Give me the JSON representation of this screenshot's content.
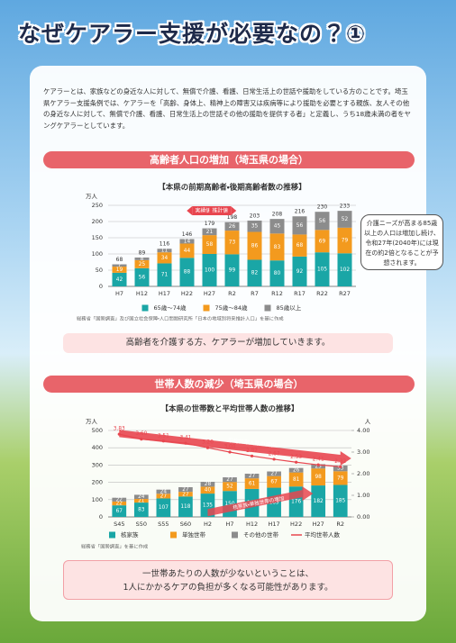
{
  "page_title": "なぜケアラー支援が必要なの？①",
  "intro": "ケアラーとは、家族などの身近な人に対して、無償で介護、看護、日常生活上の世話や援助をしている方のことです。埼玉県ケアラー支援条例では、ケアラーを「高齢、身体上、精神上の障害又は疾病等により援助を必要とする親族、友人その他の身近な人に対して、無償で介護、看護、日常生活上の世話その他の援助を提供する者」と定義し、うち18歳未満の者をヤングケアラーとしています。",
  "sections": [
    {
      "header": "高齢者人口の増加（埼玉県の場合）",
      "callout": "介護ニーズが高まる85歳以上の人口は増加し続け、令和27年(2040年)には現在の約2倍となることが予想されます。",
      "message": [
        "高齢者を介護する方、ケアラーが増加していきます。"
      ]
    },
    {
      "header": "世帯人数の減少（埼玉県の場合）",
      "message": [
        "一世帯あたりの人数が少ないということは、",
        "1人にかかるケアの負担が多くなる可能性があります。"
      ]
    }
  ],
  "chart_data": [
    {
      "type": "bar",
      "stacked": true,
      "title": "【本県の前期高齢者・後期高齢者数の推移】",
      "y_unit": "万人",
      "categories": [
        "H7",
        "H12",
        "H17",
        "H22",
        "H27",
        "R2",
        "R7",
        "R12",
        "R17",
        "R22",
        "R27"
      ],
      "series": [
        {
          "name": "65歳～74歳",
          "color": "#1aa6a6",
          "values": [
            42,
            56,
            71,
            88,
            100,
            99,
            82,
            80,
            92,
            105,
            102
          ]
        },
        {
          "name": "75歳～84歳",
          "color": "#f39a1e",
          "values": [
            19,
            25,
            34,
            44,
            58,
            73,
            86,
            83,
            68,
            69,
            79
          ]
        },
        {
          "name": "85歳以上",
          "color": "#8c8c8c",
          "values": [
            7,
            8,
            11,
            14,
            21,
            26,
            35,
            45,
            56,
            56,
            52
          ]
        }
      ],
      "totals": [
        68,
        89,
        116,
        146,
        179,
        198,
        203,
        208,
        216,
        230,
        233
      ],
      "ylim": [
        0,
        250
      ],
      "yticks": [
        0,
        50,
        100,
        150,
        200,
        250
      ],
      "grid": true,
      "annotations": [
        "実績値",
        "推計値"
      ],
      "source": "総務省「国勢調査」及び国立社会保障・人口問題研究所「日本の地域別将来推計人口」を基に作成"
    },
    {
      "type": "bar",
      "stacked": true,
      "title": "【本県の世帯数と平均世帯人数の推移】",
      "y_unit": "万人",
      "y2_unit": "人",
      "categories": [
        "S45",
        "S50",
        "S55",
        "S60",
        "H2",
        "H7",
        "H12",
        "H17",
        "H22",
        "H27",
        "R2"
      ],
      "series": [
        {
          "name": "核家族",
          "color": "#1aa6a6",
          "values": [
            67,
            83,
            107,
            118,
            135,
            150,
            162,
            169,
            176,
            182,
            185
          ]
        },
        {
          "name": "単独世帯",
          "color": "#f39a1e",
          "values": [
            22,
            21,
            27,
            27,
            40,
            52,
            61,
            67,
            81,
            98,
            79
          ]
        },
        {
          "name": "その他の世帯",
          "color": "#8c8c8c",
          "values": [
            22,
            24,
            24,
            27,
            28,
            27,
            27,
            27,
            26,
            25,
            33
          ]
        },
        {
          "name": "平均世帯人数",
          "color": "#e8464f",
          "type": "line",
          "axis": "y2",
          "values": [
            3.83,
            3.6,
            3.51,
            3.41,
            3.2,
            3,
            2.82,
            2.67,
            2.53,
            2.41,
            2.32
          ],
          "value_labels": [
            "3.83",
            "3.60",
            "3.51",
            "3.41",
            "3.20",
            "3.00",
            "2.82",
            "2.67",
            "2.53",
            "2.41",
            "2.32"
          ]
        }
      ],
      "ylim": [
        0,
        500
      ],
      "yticks": [
        0,
        100,
        200,
        300,
        400,
        500
      ],
      "grid": true,
      "y2lim": [
        0,
        4
      ],
      "y2ticks": [
        {
          "value": 0,
          "label": "0.00"
        },
        {
          "value": 1,
          "label": "1.00"
        },
        {
          "value": 2,
          "label": "2.00"
        },
        {
          "value": 3,
          "label": "3.00"
        },
        {
          "value": 4,
          "label": "4.00"
        }
      ],
      "annotations": [
        "平均世帯人数の減少",
        "核家族・単独世帯の増加"
      ],
      "source": "総務省「国勢調査」を基に作成"
    }
  ]
}
